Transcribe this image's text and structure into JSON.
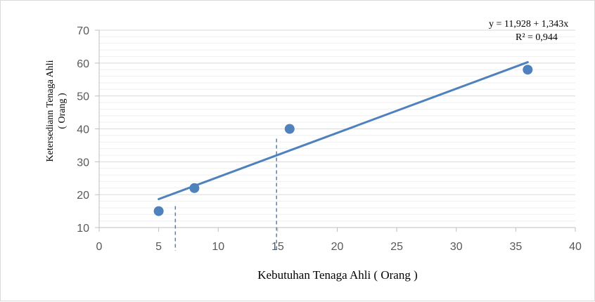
{
  "chart_data": {
    "type": "scatter",
    "title": "",
    "xlabel": "Kebutuhan Tenaga Ahli ( Orang )",
    "ylabel_lines": [
      "Ketersediann Tenaga Ahli",
      "( Orang )"
    ],
    "xlim": [
      0,
      40
    ],
    "ylim": [
      10,
      70
    ],
    "x_ticks": [
      0,
      5,
      10,
      15,
      20,
      25,
      30,
      35,
      40
    ],
    "y_ticks": [
      10,
      20,
      30,
      40,
      50,
      60,
      70
    ],
    "grid": "horizontal",
    "series": [
      {
        "points": [
          {
            "x": 5,
            "y": 15
          },
          {
            "x": 8,
            "y": 22
          },
          {
            "x": 16,
            "y": 40
          },
          {
            "x": 36,
            "y": 58
          }
        ],
        "color": "#4f81bd"
      }
    ],
    "trendline": {
      "type": "linear",
      "intercept": 11.928,
      "slope": 1.343,
      "x_range": [
        5,
        36
      ],
      "color": "#4f81bd"
    },
    "equation_label": "y = 11,928 + 1,343x",
    "r_squared_label": "R² = 0,944",
    "reference_lines": [
      {
        "x": 6.4,
        "y_top": 16.5,
        "style": "dashed"
      },
      {
        "x": 14.9,
        "y_top": 37,
        "style": "dashed"
      }
    ],
    "colors": {
      "marker": "#4f81bd",
      "gridline": "#d9d9d9",
      "axis": "#bfbfbf",
      "tick_text": "#595959"
    }
  }
}
